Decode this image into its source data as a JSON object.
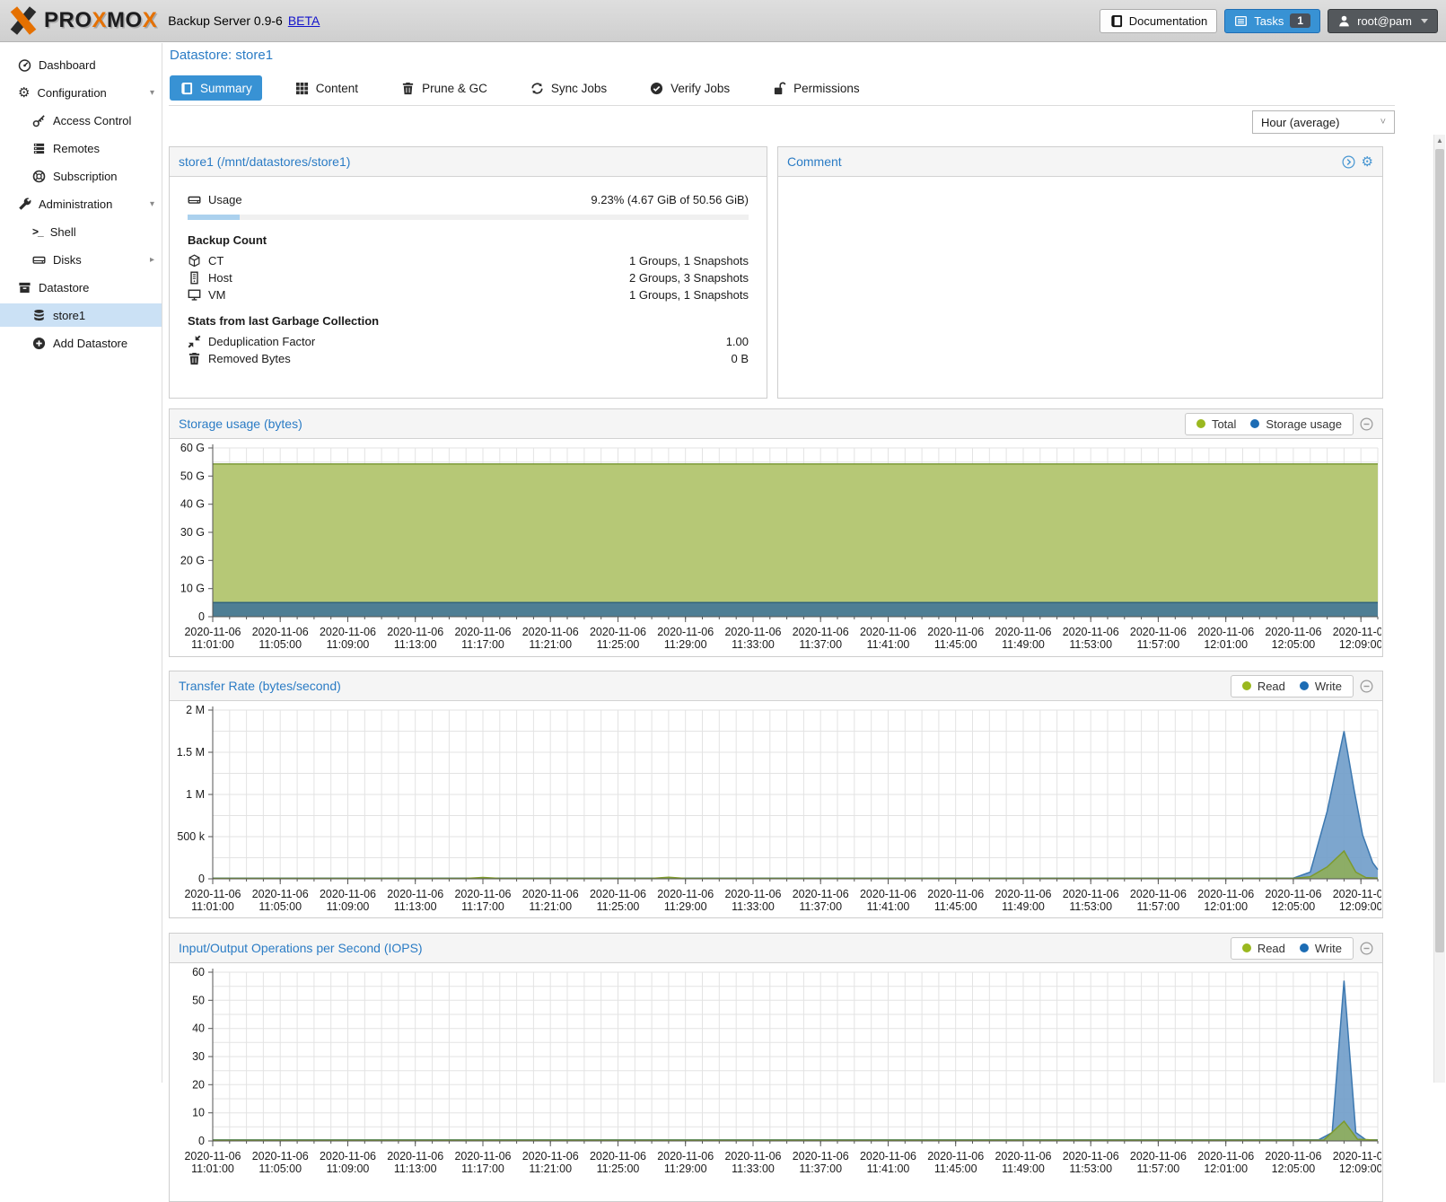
{
  "header": {
    "brand_segments": [
      {
        "t": "PRO",
        "c": "#1c1c1e"
      },
      {
        "t": "X",
        "c": "#e57000"
      },
      {
        "t": "MO",
        "c": "#1c1c1e"
      },
      {
        "t": "X",
        "c": "#e57000"
      }
    ],
    "product": "Backup Server 0.9-6",
    "beta": "BETA",
    "documentation_label": "Documentation",
    "tasks_label": "Tasks",
    "tasks_count": "1",
    "user_label": "root@pam"
  },
  "sidebar": {
    "items": [
      {
        "label": "Dashboard",
        "icon": "gauge",
        "level": 0
      },
      {
        "label": "Configuration",
        "icon": "gears",
        "level": 0,
        "expander": "down"
      },
      {
        "label": "Access Control",
        "icon": "key",
        "level": 1
      },
      {
        "label": "Remotes",
        "icon": "remotes",
        "level": 1
      },
      {
        "label": "Subscription",
        "icon": "lifering",
        "level": 1
      },
      {
        "label": "Administration",
        "icon": "wrench",
        "level": 0,
        "expander": "down"
      },
      {
        "label": "Shell",
        "icon": "terminal",
        "level": 1
      },
      {
        "label": "Disks",
        "icon": "hdd",
        "level": 1,
        "expander": "right"
      },
      {
        "label": "Datastore",
        "icon": "archive",
        "level": 0
      },
      {
        "label": "store1",
        "icon": "database",
        "level": 1,
        "selected": true
      },
      {
        "label": "Add Datastore",
        "icon": "plus-circle",
        "level": 1
      }
    ]
  },
  "page": {
    "title": "Datastore: store1",
    "tabs": [
      {
        "label": "Summary",
        "icon": "book",
        "active": true
      },
      {
        "label": "Content",
        "icon": "grid"
      },
      {
        "label": "Prune & GC",
        "icon": "trash"
      },
      {
        "label": "Sync Jobs",
        "icon": "refresh"
      },
      {
        "label": "Verify Jobs",
        "icon": "check-circle"
      },
      {
        "label": "Permissions",
        "icon": "unlock"
      }
    ],
    "range_selector": "Hour (average)"
  },
  "datastore_panel": {
    "title": "store1 (/mnt/datastores/store1)",
    "usage": {
      "label": "Usage",
      "value": "9.23% (4.67 GiB of 50.56 GiB)",
      "percent": 9.23
    },
    "backup_count": {
      "title": "Backup Count",
      "rows": [
        {
          "icon": "cube",
          "label": "CT",
          "value": "1 Groups, 1 Snapshots"
        },
        {
          "icon": "host",
          "label": "Host",
          "value": "2 Groups, 3 Snapshots"
        },
        {
          "icon": "vm",
          "label": "VM",
          "value": "1 Groups, 1 Snapshots"
        }
      ]
    },
    "gc_stats": {
      "title": "Stats from last Garbage Collection",
      "rows": [
        {
          "icon": "compress",
          "label": "Deduplication Factor",
          "value": "1.00"
        },
        {
          "icon": "trash",
          "label": "Removed Bytes",
          "value": "0 B"
        }
      ]
    }
  },
  "comment_panel": {
    "title": "Comment"
  },
  "chart_data": [
    {
      "type": "area",
      "title": "Storage usage (bytes)",
      "date": "2020-11-06",
      "x_ticks": [
        "11:01:00",
        "11:05:00",
        "11:09:00",
        "11:13:00",
        "11:17:00",
        "11:21:00",
        "11:25:00",
        "11:29:00",
        "11:33:00",
        "11:37:00",
        "11:41:00",
        "11:45:00",
        "11:49:00",
        "11:53:00",
        "11:57:00",
        "12:01:00",
        "12:05:00",
        "12:09:00"
      ],
      "x_tick_step_min": 4,
      "x_grid_step_min": 1,
      "x_minutes_max": 69,
      "ylim": [
        0,
        60000000000
      ],
      "y_grid_step": 5000000000,
      "y_ticks": [
        {
          "v": 0,
          "label": "0"
        },
        {
          "v": 10000000000,
          "label": "10 G"
        },
        {
          "v": 20000000000,
          "label": "20 G"
        },
        {
          "v": 30000000000,
          "label": "30 G"
        },
        {
          "v": 40000000000,
          "label": "40 G"
        },
        {
          "v": 50000000000,
          "label": "50 G"
        },
        {
          "v": 60000000000,
          "label": "60 G"
        }
      ],
      "legend": [
        {
          "label": "Total",
          "color": "#9ab81f"
        },
        {
          "label": "Storage usage",
          "color": "#1c6cb4"
        }
      ],
      "series": [
        {
          "name": "Total",
          "stroke": "#7c9a37",
          "fill": "#b6c876",
          "fill_opacity": 1,
          "points": [
            [
              0,
              54300000000
            ],
            [
              69,
              54300000000
            ]
          ]
        },
        {
          "name": "Storage usage",
          "stroke": "#2f627e",
          "fill": "#4e7e94",
          "fill_opacity": 1,
          "points": [
            [
              0,
              5050000000
            ],
            [
              69,
              5050000000
            ]
          ]
        }
      ]
    },
    {
      "type": "area",
      "title": "Transfer Rate (bytes/second)",
      "date": "2020-11-06",
      "x_ticks": [
        "11:01:00",
        "11:05:00",
        "11:09:00",
        "11:13:00",
        "11:17:00",
        "11:21:00",
        "11:25:00",
        "11:29:00",
        "11:33:00",
        "11:37:00",
        "11:41:00",
        "11:45:00",
        "11:49:00",
        "11:53:00",
        "11:57:00",
        "12:01:00",
        "12:05:00",
        "12:09:00"
      ],
      "x_tick_step_min": 4,
      "x_grid_step_min": 1,
      "x_minutes_max": 69,
      "ylim": [
        0,
        2000000
      ],
      "y_grid_step": 250000,
      "y_ticks": [
        {
          "v": 0,
          "label": "0"
        },
        {
          "v": 500000,
          "label": "500 k"
        },
        {
          "v": 1000000,
          "label": "1 M"
        },
        {
          "v": 1500000,
          "label": "1.5 M"
        },
        {
          "v": 2000000,
          "label": "2 M"
        }
      ],
      "legend": [
        {
          "label": "Read",
          "color": "#9ab81f"
        },
        {
          "label": "Write",
          "color": "#1c6cb4"
        }
      ],
      "series": [
        {
          "name": "Write",
          "stroke": "#3c78b0",
          "fill": "#6f9cc9",
          "fill_opacity": 0.9,
          "points": [
            [
              0,
              9000
            ],
            [
              64,
              9000
            ],
            [
              65,
              80000
            ],
            [
              66,
              800000
            ],
            [
              67,
              1750000
            ],
            [
              67.6,
              1050000
            ],
            [
              68.1,
              520000
            ],
            [
              68.7,
              190000
            ],
            [
              69,
              110000
            ]
          ]
        },
        {
          "name": "Read",
          "stroke": "#7d9a2d",
          "fill": "#8fae53",
          "fill_opacity": 0.85,
          "points": [
            [
              0,
              5000
            ],
            [
              15,
              5000
            ],
            [
              16,
              16000
            ],
            [
              17,
              5000
            ],
            [
              26,
              5000
            ],
            [
              27,
              19000
            ],
            [
              28,
              5000
            ],
            [
              64,
              5000
            ],
            [
              65,
              25000
            ],
            [
              66,
              140000
            ],
            [
              67,
              330000
            ],
            [
              67.7,
              80000
            ],
            [
              68.3,
              15000
            ],
            [
              69,
              7000
            ]
          ]
        }
      ]
    },
    {
      "type": "area",
      "title": "Input/Output Operations per Second (IOPS)",
      "date": "2020-11-06",
      "x_ticks": [
        "11:01:00",
        "11:05:00",
        "11:09:00",
        "11:13:00",
        "11:17:00",
        "11:21:00",
        "11:25:00",
        "11:29:00",
        "11:33:00",
        "11:37:00",
        "11:41:00",
        "11:45:00",
        "11:49:00",
        "11:53:00",
        "11:57:00",
        "12:01:00",
        "12:05:00",
        "12:09:00"
      ],
      "x_tick_step_min": 4,
      "x_grid_step_min": 1,
      "x_minutes_max": 69,
      "ylim": [
        0,
        60
      ],
      "y_grid_step": 5,
      "y_ticks": [
        {
          "v": 0,
          "label": "0"
        },
        {
          "v": 10,
          "label": "10"
        },
        {
          "v": 20,
          "label": "20"
        },
        {
          "v": 30,
          "label": "30"
        },
        {
          "v": 40,
          "label": "40"
        },
        {
          "v": 50,
          "label": "50"
        },
        {
          "v": 60,
          "label": "60"
        }
      ],
      "legend": [
        {
          "label": "Read",
          "color": "#9ab81f"
        },
        {
          "label": "Write",
          "color": "#1c6cb4"
        }
      ],
      "series": [
        {
          "name": "Write",
          "stroke": "#3c78b0",
          "fill": "#6f9cc9",
          "fill_opacity": 0.9,
          "points": [
            [
              0,
              0.4
            ],
            [
              65.5,
              0.4
            ],
            [
              66.3,
              3
            ],
            [
              67,
              57
            ],
            [
              67.7,
              3
            ],
            [
              68.3,
              0.4
            ],
            [
              69,
              0.4
            ]
          ]
        },
        {
          "name": "Read",
          "stroke": "#7d9a2d",
          "fill": "#8fae53",
          "fill_opacity": 0.85,
          "points": [
            [
              0,
              0.3
            ],
            [
              65.8,
              0.3
            ],
            [
              67,
              7
            ],
            [
              67.8,
              0.6
            ],
            [
              69,
              0.3
            ]
          ]
        }
      ]
    }
  ]
}
